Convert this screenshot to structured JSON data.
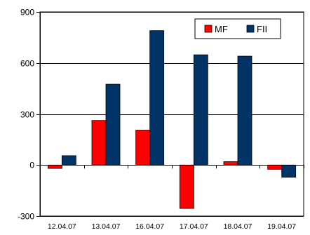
{
  "chart_data": {
    "type": "bar",
    "title": "",
    "xlabel": "",
    "ylabel": "",
    "categories": [
      "12.04.07",
      "13.04.07",
      "16.04.07",
      "17.04.07",
      "18.04.07",
      "19.04.07"
    ],
    "series": [
      {
        "name": "MF",
        "color": "#ff0000",
        "values": [
          -20,
          262,
          205,
          -255,
          20,
          -25
        ]
      },
      {
        "name": "FII",
        "color": "#003366",
        "values": [
          55,
          475,
          790,
          648,
          640,
          -72
        ]
      }
    ],
    "ylim": [
      -300,
      900
    ],
    "yticks": [
      -300,
      0,
      300,
      600,
      900
    ],
    "grid": true,
    "legend_position": "top-right"
  }
}
